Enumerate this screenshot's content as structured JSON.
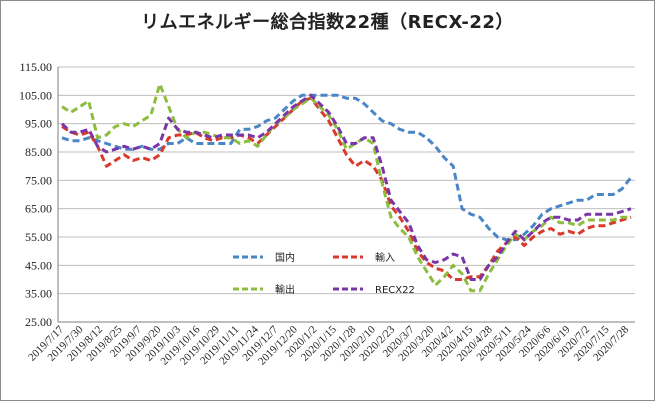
{
  "chart_data": {
    "type": "line",
    "title": "リムエネルギー総合指数22種（RECX-22）",
    "ylim": [
      25,
      115
    ],
    "y_ticks": [
      "115.00",
      "105.00",
      "95.00",
      "85.00",
      "75.00",
      "65.00",
      "55.00",
      "45.00",
      "35.00",
      "25.00"
    ],
    "y_tick_values": [
      115,
      105,
      95,
      85,
      75,
      65,
      55,
      45,
      35,
      25
    ],
    "x_tick_labels": [
      "2019/7/17",
      "2019/7/30",
      "2019/8/12",
      "2019/8/25",
      "2019/9/7",
      "2019/9/20",
      "2019/10/3",
      "2019/10/16",
      "2019/10/29",
      "2019/11/11",
      "2019/11/24",
      "2019/12/7",
      "2019/12/20",
      "2020/1/2",
      "2020/1/15",
      "2020/1/28",
      "2020/2/10",
      "2020/2/23",
      "2020/3/7",
      "2020/3/20",
      "2020/4/2",
      "2020/4/15",
      "2020/4/28",
      "2020/5/11",
      "2020/5/24",
      "2020/6/6",
      "2020/6/19",
      "2020/7/2",
      "2020/7/15",
      "2020/7/28"
    ],
    "grid": "horizontal",
    "legend_placement": "bottom-center",
    "series": [
      {
        "name": "国内",
        "color": "#4a86c5",
        "style": "dashed",
        "values": [
          90,
          89,
          89,
          90,
          89,
          88,
          87,
          86,
          86,
          87,
          86,
          86,
          88,
          88,
          90,
          88,
          88,
          88,
          88,
          88,
          93,
          93,
          94,
          96,
          97,
          100,
          103,
          105,
          105,
          105,
          105,
          105,
          104,
          104,
          102,
          99,
          96,
          95,
          93,
          92,
          92,
          90,
          87,
          83,
          80,
          65,
          63,
          62,
          58,
          55,
          54,
          54,
          56,
          59,
          63,
          65,
          66,
          67,
          68,
          68,
          70,
          70,
          70,
          72,
          76
        ]
      },
      {
        "name": "輸入",
        "color": "#d93a2b",
        "style": "dashed",
        "values": [
          94,
          92,
          91,
          92,
          87,
          80,
          82,
          84,
          82,
          83,
          82,
          84,
          90,
          91,
          91,
          92,
          90,
          89,
          90,
          90,
          91,
          90,
          88,
          91,
          94,
          97,
          100,
          103,
          104,
          100,
          96,
          90,
          84,
          80,
          82,
          80,
          75,
          66,
          62,
          57,
          50,
          46,
          44,
          43,
          40,
          40,
          41,
          41,
          45,
          50,
          53,
          55,
          52,
          55,
          57,
          58,
          56,
          57,
          56,
          58,
          59,
          59,
          60,
          61,
          62
        ]
      },
      {
        "name": "輸出",
        "color": "#8cbd3f",
        "style": "dashed",
        "values": [
          101,
          99,
          101,
          103,
          90,
          91,
          94,
          95,
          94,
          96,
          98,
          109,
          101,
          93,
          90,
          92,
          92,
          91,
          90,
          90,
          88,
          89,
          87,
          91,
          95,
          97,
          100,
          102,
          104,
          101,
          98,
          93,
          86,
          88,
          90,
          88,
          74,
          62,
          58,
          55,
          48,
          43,
          38,
          41,
          45,
          42,
          36,
          36,
          42,
          47,
          52,
          56,
          54,
          57,
          59,
          62,
          60,
          60,
          59,
          61,
          61,
          61,
          61,
          62,
          62
        ]
      },
      {
        "name": "RECX22",
        "color": "#7a35a8",
        "style": "dashed",
        "values": [
          95,
          92,
          92,
          93,
          87,
          85,
          86,
          87,
          86,
          87,
          86,
          88,
          97,
          93,
          92,
          92,
          91,
          90,
          91,
          91,
          91,
          91,
          90,
          92,
          95,
          98,
          101,
          103,
          105,
          102,
          99,
          94,
          88,
          88,
          90,
          90,
          80,
          68,
          64,
          60,
          52,
          47,
          46,
          47,
          49,
          48,
          40,
          40,
          45,
          48,
          53,
          57,
          54,
          57,
          60,
          62,
          62,
          61,
          61,
          63,
          63,
          63,
          63,
          64,
          65
        ]
      }
    ]
  }
}
